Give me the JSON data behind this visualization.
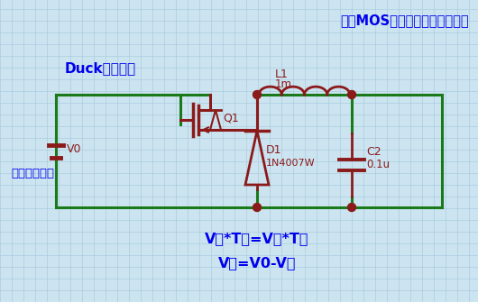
{
  "bg_color": "#cce4f0",
  "grid_color": "#aacce0",
  "wire_color": "#1a7a1a",
  "component_color": "#8b1a1a",
  "text_blue": "#0000ee",
  "junction_color": "#8b1a1a",
  "title": "通过MOS管不断开关进行的降压",
  "label_duck": "Duck降压电路",
  "label_v0": "V0",
  "label_source": "这是一个电源",
  "label_q1": "Q1",
  "label_l1": "L1",
  "label_l1v": "1m",
  "label_d1": "D1",
  "label_d1v": "1N4007W",
  "label_c2": "C2",
  "label_c2v": "0.1u",
  "label_eq1": "V开*T开=V关*T关",
  "label_eq2": "V开=V0-V关"
}
